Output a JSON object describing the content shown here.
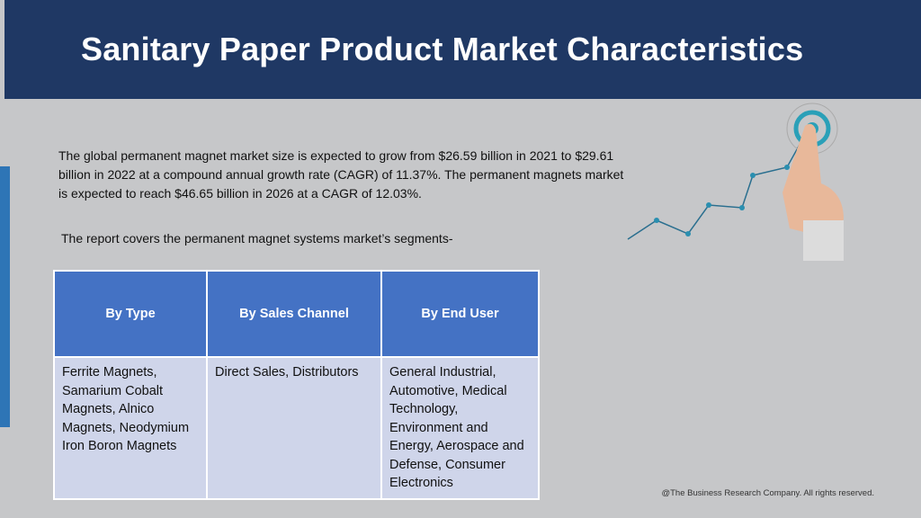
{
  "header": {
    "title": "Sanitary Paper Product Market Characteristics"
  },
  "intro": "The global permanent magnet market size is expected to grow from $26.59 billion in 2021 to $29.61 billion in 2022 at a compound annual growth rate (CAGR) of 11.37%. The permanent magnets market is expected to reach $46.65 billion in 2026 at a CAGR of 12.03%.",
  "lead": "The report covers the permanent magnet systems market’s segments-",
  "table": {
    "header": [
      "By Type",
      "By Sales Channel",
      "By End User"
    ],
    "rows": [
      [
        "Ferrite Magnets, Samarium Cobalt Magnets, Alnico Magnets, Neodymium Iron Boron Magnets",
        "Direct Sales, Distributors",
        "General Industrial, Automotive, Medical Technology, Environment and Energy, Aerospace and Defense, Consumer Electronics"
      ]
    ]
  },
  "footer": "@The Business Research Company. All rights reserved."
}
